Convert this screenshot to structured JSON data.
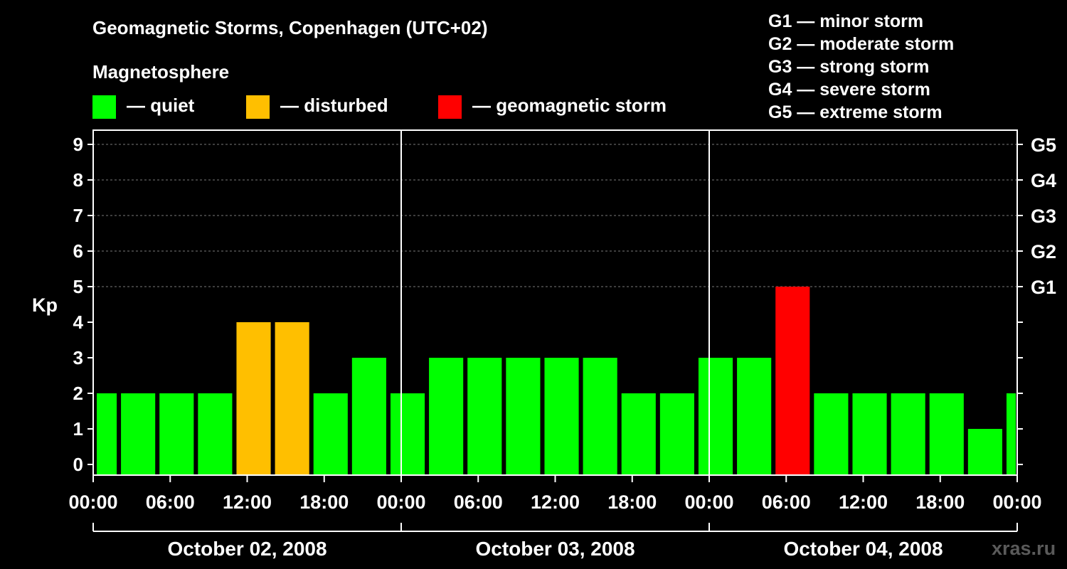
{
  "header": {
    "title": "Geomagnetic Storms, Copenhagen (UTC+02)",
    "subtitle": "Magnetosphere"
  },
  "legend": [
    {
      "label": "— quiet",
      "color": "#00ff00"
    },
    {
      "label": "— disturbed",
      "color": "#ffbf00"
    },
    {
      "label": "— geomagnetic storm",
      "color": "#ff0000"
    }
  ],
  "storm_scale": [
    "G1 — minor storm",
    "G2 — moderate storm",
    "G3 — strong storm",
    "G4 — severe storm",
    "G5 — extreme storm"
  ],
  "watermark": "xras.ru",
  "chart_data": {
    "type": "bar",
    "ylabel": "Kp",
    "ylim": [
      -0.3,
      9.4
    ],
    "yticks": [
      0,
      1,
      2,
      3,
      4,
      5,
      6,
      7,
      8,
      9
    ],
    "right_ticks": [
      {
        "value": 5,
        "label": "G1"
      },
      {
        "value": 6,
        "label": "G2"
      },
      {
        "value": 7,
        "label": "G3"
      },
      {
        "value": 8,
        "label": "G4"
      },
      {
        "value": 9,
        "label": "G5"
      }
    ],
    "x_range_hours": [
      0,
      72
    ],
    "x_tick_labels": [
      "00:00",
      "06:00",
      "12:00",
      "18:00",
      "00:00",
      "06:00",
      "12:00",
      "18:00",
      "00:00",
      "06:00",
      "12:00",
      "18:00",
      "00:00"
    ],
    "day_labels": [
      "October 02, 2008",
      "October 03, 2008",
      "October 04, 2008"
    ],
    "bar_start_hours": [
      0,
      2,
      5,
      8,
      11,
      14,
      17,
      20,
      23,
      26,
      29,
      32,
      35,
      38,
      41,
      44,
      47,
      50,
      53,
      56,
      59,
      62,
      65,
      68,
      71
    ],
    "bar_end_hours": [
      2,
      5,
      8,
      11,
      14,
      17,
      20,
      23,
      26,
      29,
      32,
      35,
      38,
      41,
      44,
      47,
      50,
      53,
      56,
      59,
      62,
      65,
      68,
      71,
      72
    ],
    "values": [
      2,
      2,
      2,
      2,
      4,
      4,
      2,
      3,
      2,
      3,
      3,
      3,
      3,
      3,
      2,
      2,
      3,
      3,
      5,
      2,
      2,
      2,
      2,
      1,
      2
    ],
    "colors": {
      "quiet": "#00ff00",
      "disturbed": "#ffbf00",
      "storm": "#ff0000"
    },
    "grid": "dashed horizontal at Kp 5-9"
  }
}
